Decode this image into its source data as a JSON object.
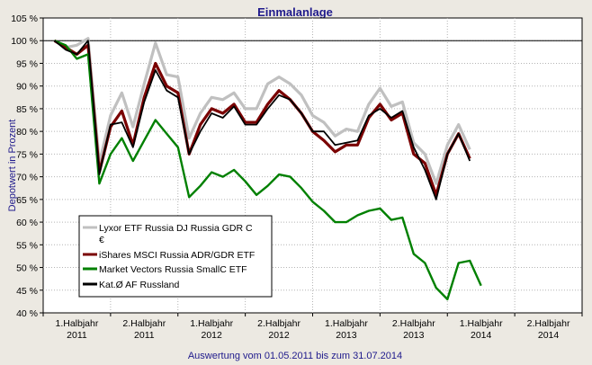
{
  "chart_data": {
    "type": "line",
    "title": "Einmalanlage",
    "ylabel": "Depotwert in Prozent",
    "xlabel": "Auswertung vom 01.05.2011 bis zum 31.07.2014",
    "y_unit": "%",
    "ylim": [
      40,
      105
    ],
    "y_ticks": [
      40,
      45,
      50,
      55,
      60,
      65,
      70,
      75,
      80,
      85,
      90,
      95,
      100,
      105
    ],
    "y_tick_labels": [
      "40 %",
      "45 %",
      "50 %",
      "55 %",
      "60 %",
      "65 %",
      "70 %",
      "75 %",
      "80 %",
      "85 %",
      "90 %",
      "95 %",
      "100 %",
      "105 %"
    ],
    "reference_line": 100,
    "x_axis": {
      "start": "2011-05",
      "end": "2014-07",
      "categories": [
        {
          "line1": "1.Halbjahr",
          "line2": "2011"
        },
        {
          "line1": "2.Halbjahr",
          "line2": "2011"
        },
        {
          "line1": "1.Halbjahr",
          "line2": "2012"
        },
        {
          "line1": "2.Halbjahr",
          "line2": "2012"
        },
        {
          "line1": "1.Halbjahr",
          "line2": "2013"
        },
        {
          "line1": "2.Halbjahr",
          "line2": "2013"
        },
        {
          "line1": "1.Halbjahr",
          "line2": "2014"
        },
        {
          "line1": "2.Halbjahr",
          "line2": "2014"
        }
      ]
    },
    "legend": {
      "placement": "inside-lower-left",
      "entries": [
        {
          "name": "Lyxor ETF Russia DJ Russia GDR C €",
          "color": "#c0c0c0"
        },
        {
          "name": "iShares MSCI Russia ADR/GDR ETF",
          "color": "#7a0000"
        },
        {
          "name": "Market Vectors Russia SmallC ETF",
          "color": "#008000"
        },
        {
          "name": "Kat.Ø AF Russland",
          "color": "#000000"
        }
      ]
    },
    "series": [
      {
        "name": "Lyxor ETF Russia DJ Russia GDR C €",
        "color": "#c0c0c0",
        "points": [
          [
            "2011-05",
            100
          ],
          [
            "2011-06",
            98.5
          ],
          [
            "2011-07",
            99
          ],
          [
            "2011-08",
            100.5
          ],
          [
            "2011-09",
            73
          ],
          [
            "2011-10",
            83.5
          ],
          [
            "2011-11",
            88.5
          ],
          [
            "2011-12",
            81
          ],
          [
            "2012-01",
            90.5
          ],
          [
            "2012-02",
            99.5
          ],
          [
            "2012-03",
            92.5
          ],
          [
            "2012-04",
            92
          ],
          [
            "2012-05",
            78.5
          ],
          [
            "2012-06",
            84
          ],
          [
            "2012-07",
            87.5
          ],
          [
            "2012-08",
            87
          ],
          [
            "2012-09",
            88.5
          ],
          [
            "2012-10",
            85
          ],
          [
            "2012-11",
            85
          ],
          [
            "2012-12",
            90.5
          ],
          [
            "2013-01",
            92
          ],
          [
            "2013-02",
            90.5
          ],
          [
            "2013-03",
            88
          ],
          [
            "2013-04",
            83.5
          ],
          [
            "2013-05",
            82
          ],
          [
            "2013-06",
            79
          ],
          [
            "2013-07",
            80.5
          ],
          [
            "2013-08",
            80
          ],
          [
            "2013-09",
            86
          ],
          [
            "2013-10",
            89.5
          ],
          [
            "2013-11",
            85.5
          ],
          [
            "2013-12",
            86.5
          ],
          [
            "2014-01",
            77.5
          ],
          [
            "2014-02",
            75
          ],
          [
            "2014-03",
            68.5
          ],
          [
            "2014-04",
            77
          ],
          [
            "2014-05",
            81.5
          ],
          [
            "2014-06",
            76
          ]
        ]
      },
      {
        "name": "iShares MSCI Russia ADR/GDR ETF",
        "color": "#7a0000",
        "points": [
          [
            "2011-05",
            100
          ],
          [
            "2011-06",
            98.5
          ],
          [
            "2011-07",
            97
          ],
          [
            "2011-08",
            99
          ],
          [
            "2011-09",
            71
          ],
          [
            "2011-10",
            81
          ],
          [
            "2011-11",
            84.5
          ],
          [
            "2011-12",
            77
          ],
          [
            "2012-01",
            87.5
          ],
          [
            "2012-02",
            95
          ],
          [
            "2012-03",
            90
          ],
          [
            "2012-04",
            88.5
          ],
          [
            "2012-05",
            75
          ],
          [
            "2012-06",
            81.5
          ],
          [
            "2012-07",
            85
          ],
          [
            "2012-08",
            84
          ],
          [
            "2012-09",
            86
          ],
          [
            "2012-10",
            82
          ],
          [
            "2012-11",
            82
          ],
          [
            "2012-12",
            86
          ],
          [
            "2013-01",
            89
          ],
          [
            "2013-02",
            87
          ],
          [
            "2013-03",
            84
          ],
          [
            "2013-04",
            80
          ],
          [
            "2013-05",
            78
          ],
          [
            "2013-06",
            75.5
          ],
          [
            "2013-07",
            77
          ],
          [
            "2013-08",
            77
          ],
          [
            "2013-09",
            83
          ],
          [
            "2013-10",
            86
          ],
          [
            "2013-11",
            82.5
          ],
          [
            "2013-12",
            84
          ],
          [
            "2014-01",
            75
          ],
          [
            "2014-02",
            73
          ],
          [
            "2014-03",
            66
          ],
          [
            "2014-04",
            75
          ],
          [
            "2014-05",
            79.5
          ],
          [
            "2014-06",
            74
          ]
        ]
      },
      {
        "name": "Market Vectors Russia SmallC ETF",
        "color": "#008000",
        "points": [
          [
            "2011-05",
            100
          ],
          [
            "2011-06",
            99
          ],
          [
            "2011-07",
            96
          ],
          [
            "2011-08",
            97
          ],
          [
            "2011-09",
            68.5
          ],
          [
            "2011-10",
            75
          ],
          [
            "2011-11",
            78.5
          ],
          [
            "2011-12",
            73.5
          ],
          [
            "2012-01",
            78
          ],
          [
            "2012-02",
            82.5
          ],
          [
            "2012-03",
            79.5
          ],
          [
            "2012-04",
            76.5
          ],
          [
            "2012-05",
            65.5
          ],
          [
            "2012-06",
            68
          ],
          [
            "2012-07",
            71
          ],
          [
            "2012-08",
            70
          ],
          [
            "2012-09",
            71.5
          ],
          [
            "2012-10",
            69
          ],
          [
            "2012-11",
            66
          ],
          [
            "2012-12",
            68
          ],
          [
            "2013-01",
            70.5
          ],
          [
            "2013-02",
            70
          ],
          [
            "2013-03",
            67.5
          ],
          [
            "2013-04",
            64.5
          ],
          [
            "2013-05",
            62.5
          ],
          [
            "2013-06",
            60
          ],
          [
            "2013-07",
            60
          ],
          [
            "2013-08",
            61.5
          ],
          [
            "2013-09",
            62.5
          ],
          [
            "2013-10",
            63
          ],
          [
            "2013-11",
            60.5
          ],
          [
            "2013-12",
            61
          ],
          [
            "2014-01",
            53
          ],
          [
            "2014-02",
            51
          ],
          [
            "2014-03",
            45.5
          ],
          [
            "2014-04",
            43
          ],
          [
            "2014-05",
            51
          ],
          [
            "2014-06",
            51.5
          ],
          [
            "2014-07",
            46
          ]
        ]
      },
      {
        "name": "Kat.Ø AF Russland",
        "color": "#000000",
        "points": [
          [
            "2011-05",
            100
          ],
          [
            "2011-06",
            98
          ],
          [
            "2011-07",
            97
          ],
          [
            "2011-08",
            100
          ],
          [
            "2011-09",
            70.5
          ],
          [
            "2011-10",
            81.5
          ],
          [
            "2011-11",
            82
          ],
          [
            "2011-12",
            76.5
          ],
          [
            "2012-01",
            86.5
          ],
          [
            "2012-02",
            93.5
          ],
          [
            "2012-03",
            89
          ],
          [
            "2012-04",
            87.5
          ],
          [
            "2012-05",
            75
          ],
          [
            "2012-06",
            80
          ],
          [
            "2012-07",
            84
          ],
          [
            "2012-08",
            83
          ],
          [
            "2012-09",
            85.5
          ],
          [
            "2012-10",
            81.5
          ],
          [
            "2012-11",
            81.5
          ],
          [
            "2012-12",
            85
          ],
          [
            "2013-01",
            88
          ],
          [
            "2013-02",
            87
          ],
          [
            "2013-03",
            84
          ],
          [
            "2013-04",
            80
          ],
          [
            "2013-05",
            80
          ],
          [
            "2013-06",
            77
          ],
          [
            "2013-07",
            77.5
          ],
          [
            "2013-08",
            78
          ],
          [
            "2013-09",
            83.5
          ],
          [
            "2013-10",
            85
          ],
          [
            "2013-11",
            83
          ],
          [
            "2013-12",
            84.5
          ],
          [
            "2014-01",
            76.5
          ],
          [
            "2014-02",
            71.5
          ],
          [
            "2014-03",
            65
          ],
          [
            "2014-04",
            75
          ],
          [
            "2014-05",
            79.5
          ],
          [
            "2014-06",
            73.5
          ]
        ]
      }
    ]
  }
}
